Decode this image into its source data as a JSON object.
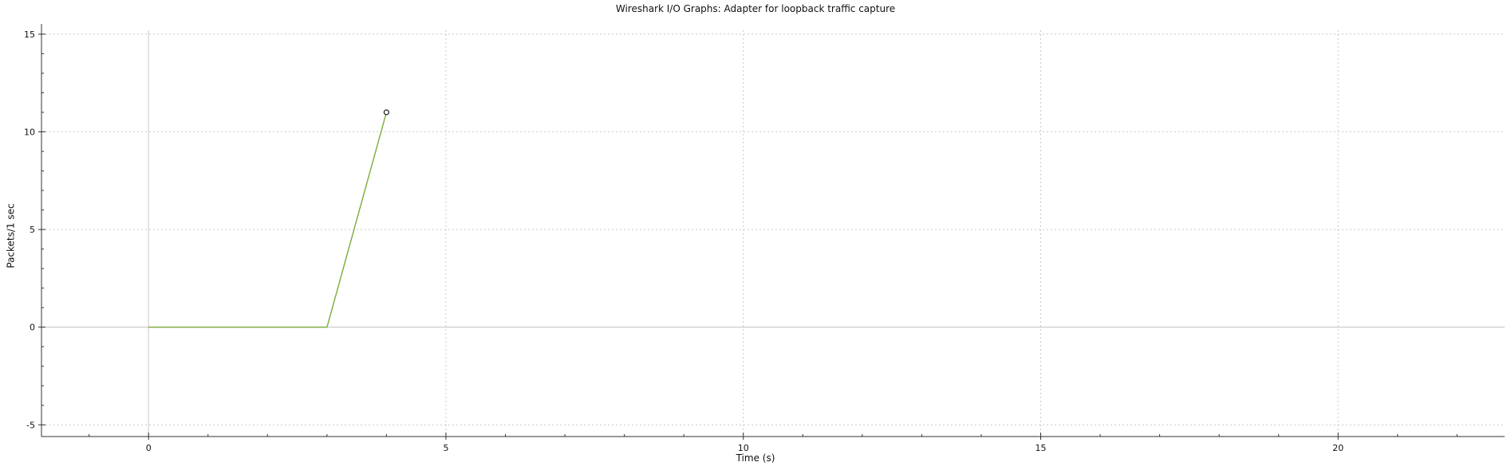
{
  "window": {
    "title": "Wireshark I/O Graphs: Adapter for loopback traffic capture"
  },
  "chart_data": {
    "type": "line",
    "title": "Wireshark I/O Graphs: Adapter for loopback traffic capture",
    "xlabel": "Time (s)",
    "ylabel": "Packets/1 sec",
    "xlim": [
      -1.8,
      22.8
    ],
    "ylim": [
      -5.6,
      15.2
    ],
    "x_ticks": [
      0,
      5,
      10,
      15,
      20
    ],
    "y_ticks": [
      -5,
      0,
      5,
      10,
      15
    ],
    "x_minor_step": 1,
    "y_minor_step": 1,
    "grid": true,
    "grid_style": "dotted",
    "series": [
      {
        "x": [
          0,
          1,
          2,
          3,
          4
        ],
        "values": [
          0,
          0,
          0,
          0,
          11
        ],
        "color": "#7cab3a",
        "marker_on_last": true
      }
    ]
  }
}
